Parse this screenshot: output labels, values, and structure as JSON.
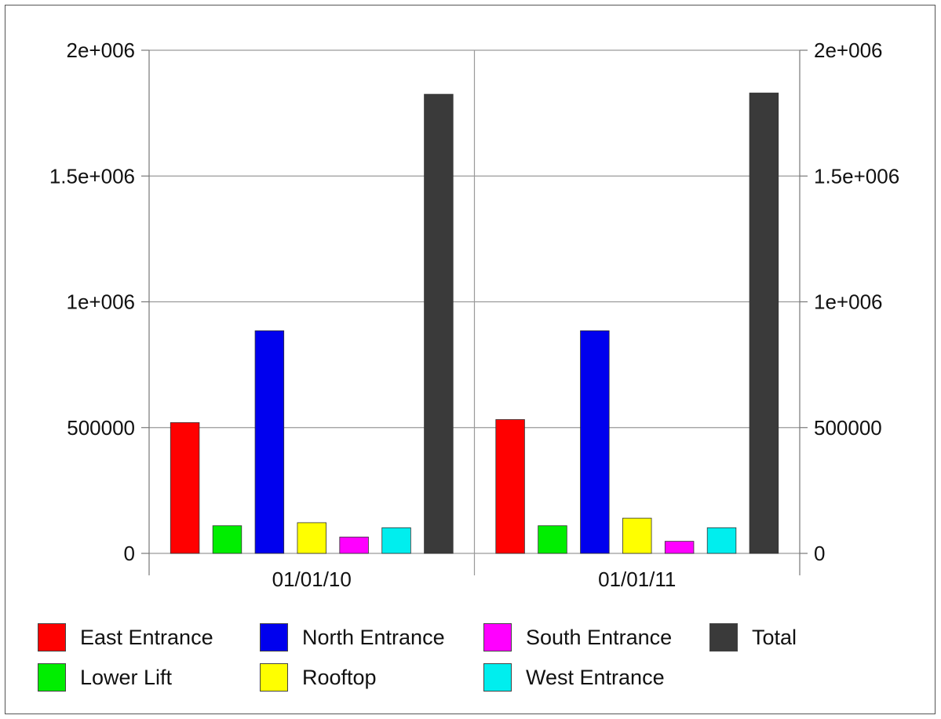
{
  "chart_data": {
    "type": "bar",
    "categories": [
      "01/01/10",
      "01/01/11"
    ],
    "series": [
      {
        "name": "East Entrance",
        "color": "#ff0000",
        "values": [
          520000,
          532000
        ]
      },
      {
        "name": "Lower Lift",
        "color": "#00ee00",
        "values": [
          110000,
          110000
        ]
      },
      {
        "name": "North Entrance",
        "color": "#0000ee",
        "values": [
          885000,
          885000
        ]
      },
      {
        "name": "Rooftop",
        "color": "#ffff00",
        "values": [
          122000,
          140000
        ]
      },
      {
        "name": "South Entrance",
        "color": "#ff00ff",
        "values": [
          65000,
          48000
        ]
      },
      {
        "name": "West Entrance",
        "color": "#00eeee",
        "values": [
          102000,
          102000
        ]
      },
      {
        "name": "Total",
        "color": "#3a3a3a",
        "values": [
          1825000,
          1830000
        ]
      }
    ],
    "yticks": [
      "0",
      "500000",
      "1e+006",
      "1.5e+006",
      "2e+006"
    ],
    "ylim": [
      0,
      2000000
    ],
    "y_axis_sides": [
      "left",
      "right"
    ],
    "grid": true,
    "legend_placement": "bottom",
    "title": "",
    "xlabel": "",
    "ylabel": ""
  }
}
